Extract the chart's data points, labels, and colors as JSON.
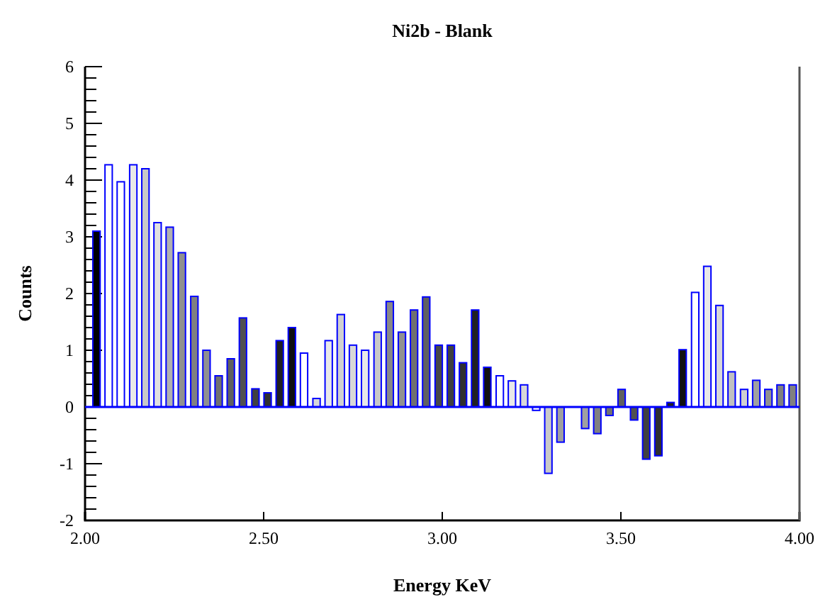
{
  "chart_data": {
    "type": "bar",
    "title": "Ni2b - Blank",
    "xlabel": "Energy KeV",
    "ylabel": "Counts",
    "x": [
      2.032,
      2.066,
      2.1,
      2.135,
      2.169,
      2.203,
      2.237,
      2.271,
      2.306,
      2.34,
      2.374,
      2.408,
      2.442,
      2.477,
      2.511,
      2.545,
      2.579,
      2.613,
      2.648,
      2.682,
      2.716,
      2.75,
      2.784,
      2.819,
      2.853,
      2.887,
      2.921,
      2.955,
      2.99,
      3.024,
      3.058,
      3.092,
      3.126,
      3.161,
      3.195,
      3.229,
      3.263,
      3.297,
      3.331,
      3.366,
      3.4,
      3.434,
      3.468,
      3.502,
      3.537,
      3.571,
      3.605,
      3.639,
      3.673,
      3.708,
      3.742,
      3.776,
      3.81,
      3.845,
      3.879,
      3.913,
      3.947,
      3.981
    ],
    "values": [
      3.1,
      4.27,
      3.97,
      4.27,
      4.2,
      3.25,
      3.17,
      2.72,
      1.95,
      1.0,
      0.55,
      0.85,
      1.57,
      0.32,
      0.25,
      1.17,
      1.4,
      0.95,
      0.15,
      1.17,
      1.63,
      1.09,
      1.0,
      1.32,
      1.86,
      1.32,
      1.71,
      1.94,
      1.09,
      1.09,
      0.78,
      1.71,
      0.7,
      0.55,
      0.46,
      0.39,
      -0.06,
      -1.17,
      -0.62,
      0,
      -0.38,
      -0.47,
      -0.15,
      0.31,
      -0.23,
      -0.92,
      -0.86,
      0.08,
      1.01,
      2.02,
      2.48,
      1.79,
      0.62,
      0.31,
      0.47,
      0.31,
      0.39,
      0.39
    ],
    "colors": [
      "#000000",
      "#ffffff",
      "#ffffff",
      "#e8e8e8",
      "#c8c8c8",
      "#e0e0e0",
      "#b0b0b0",
      "#909090",
      "#808080",
      "#909090",
      "#707070",
      "#606060",
      "#505050",
      "#404040",
      "#303030",
      "#202020",
      "#101010",
      "#ffffff",
      "#d8d8d8",
      "#e8e8e8",
      "#d0d0d0",
      "#d8d8d8",
      "#e8e8e8",
      "#c8c8c8",
      "#888888",
      "#909090",
      "#707070",
      "#606060",
      "#484848",
      "#404040",
      "#303030",
      "#202020",
      "#101010",
      "#ffffff",
      "#e8e8e8",
      "#d8d8d8",
      "#ffffff",
      "#c8c8c8",
      "#a0a0a0",
      "#909090",
      "#a0a0a0",
      "#808080",
      "#707070",
      "#606060",
      "#505050",
      "#404040",
      "#303030",
      "#202020",
      "#101010",
      "#ffffff",
      "#e8e8e8",
      "#d8d8d8",
      "#c0c0c0",
      "#d0d0d0",
      "#a0a0a0",
      "#909090",
      "#808080",
      "#808080"
    ],
    "xlim": [
      2,
      4
    ],
    "xticks": [
      {
        "value": 2,
        "label": "2.00"
      },
      {
        "value": 2.5,
        "label": "2.50"
      },
      {
        "value": 3,
        "label": "3.00"
      },
      {
        "value": 3.5,
        "label": "3.50"
      },
      {
        "value": 4,
        "label": "4.00"
      }
    ],
    "ylim": [
      -2,
      6
    ],
    "yticks": [
      -2,
      {
        "value": -1.8,
        "label": null
      },
      {
        "value": -1.6,
        "label": null
      },
      {
        "value": -1.4,
        "label": null
      },
      {
        "value": -1.2,
        "label": null
      },
      -1,
      {
        "value": -0.8,
        "label": null
      },
      {
        "value": -0.6,
        "label": null
      },
      {
        "value": -0.4,
        "label": null
      },
      {
        "value": -0.2,
        "label": null
      },
      0,
      {
        "value": 0.2,
        "label": null
      },
      {
        "value": 0.4,
        "label": null
      },
      {
        "value": 0.6,
        "label": null
      },
      {
        "value": 0.8,
        "label": null
      },
      1,
      {
        "value": 1.2,
        "label": null
      },
      {
        "value": 1.4,
        "label": null
      },
      {
        "value": 1.6,
        "label": null
      },
      {
        "value": 1.8,
        "label": null
      },
      2,
      {
        "value": 2.2,
        "label": null
      },
      {
        "value": 2.4,
        "label": null
      },
      {
        "value": 2.6,
        "label": null
      },
      {
        "value": 2.8,
        "label": null
      },
      3,
      {
        "value": 3.2,
        "label": null
      },
      {
        "value": 3.4,
        "label": null
      },
      {
        "value": 3.6,
        "label": null
      },
      {
        "value": 3.8,
        "label": null
      },
      4,
      {
        "value": 4.2,
        "label": null
      },
      {
        "value": 4.4,
        "label": null
      },
      {
        "value": 4.6,
        "label": null
      },
      {
        "value": 4.8,
        "label": null
      },
      5,
      {
        "value": 5.2,
        "label": null
      },
      {
        "value": 5.4,
        "label": null
      },
      {
        "value": 5.6,
        "label": null
      },
      {
        "value": 5.8,
        "label": null
      },
      6
    ],
    "ref_lines": [
      {
        "axis": "y",
        "value": 0,
        "color": "#0000ff"
      }
    ]
  }
}
